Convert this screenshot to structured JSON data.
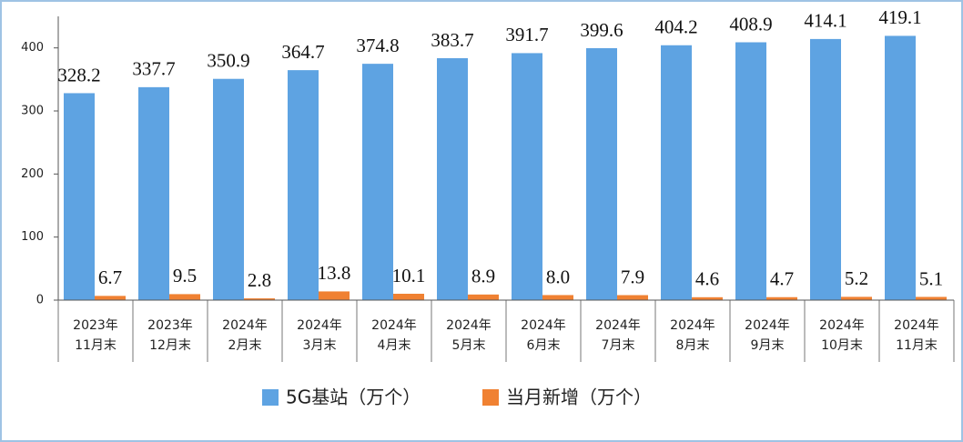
{
  "chart_data": {
    "type": "bar",
    "categories": [
      [
        "2023年",
        "11月末"
      ],
      [
        "2023年",
        "12月末"
      ],
      [
        "2024年",
        "2月末"
      ],
      [
        "2024年",
        "3月末"
      ],
      [
        "2024年",
        "4月末"
      ],
      [
        "2024年",
        "5月末"
      ],
      [
        "2024年",
        "6月末"
      ],
      [
        "2024年",
        "7月末"
      ],
      [
        "2024年",
        "8月末"
      ],
      [
        "2024年",
        "9月末"
      ],
      [
        "2024年",
        "10月末"
      ],
      [
        "2024年",
        "11月末"
      ]
    ],
    "series": [
      {
        "name": "5G基站（万个）",
        "color": "#5ea3e2",
        "values": [
          328.2,
          337.7,
          350.9,
          364.7,
          374.8,
          383.7,
          391.7,
          399.6,
          404.2,
          408.9,
          414.1,
          419.1
        ],
        "value_labels": [
          "328.2",
          "337.7",
          "350.9",
          "364.7",
          "374.8",
          "383.7",
          "391.7",
          "399.6",
          "404.2",
          "408.9",
          "414.1",
          "419.1"
        ]
      },
      {
        "name": "当月新增（万个）",
        "color": "#f08132",
        "values": [
          6.7,
          9.5,
          2.8,
          13.8,
          10.1,
          8.9,
          8.0,
          7.9,
          4.6,
          4.7,
          5.2,
          5.1
        ],
        "value_labels": [
          "6.7",
          "9.5",
          "2.8",
          "13.8",
          "10.1",
          "8.9",
          "8.0",
          "7.9",
          "4.6",
          "4.7",
          "5.2",
          "5.1"
        ]
      }
    ],
    "ylim": [
      0,
      450
    ],
    "yticks": [
      0,
      100,
      200,
      300,
      400
    ],
    "grid": false,
    "legend": "bottom"
  }
}
